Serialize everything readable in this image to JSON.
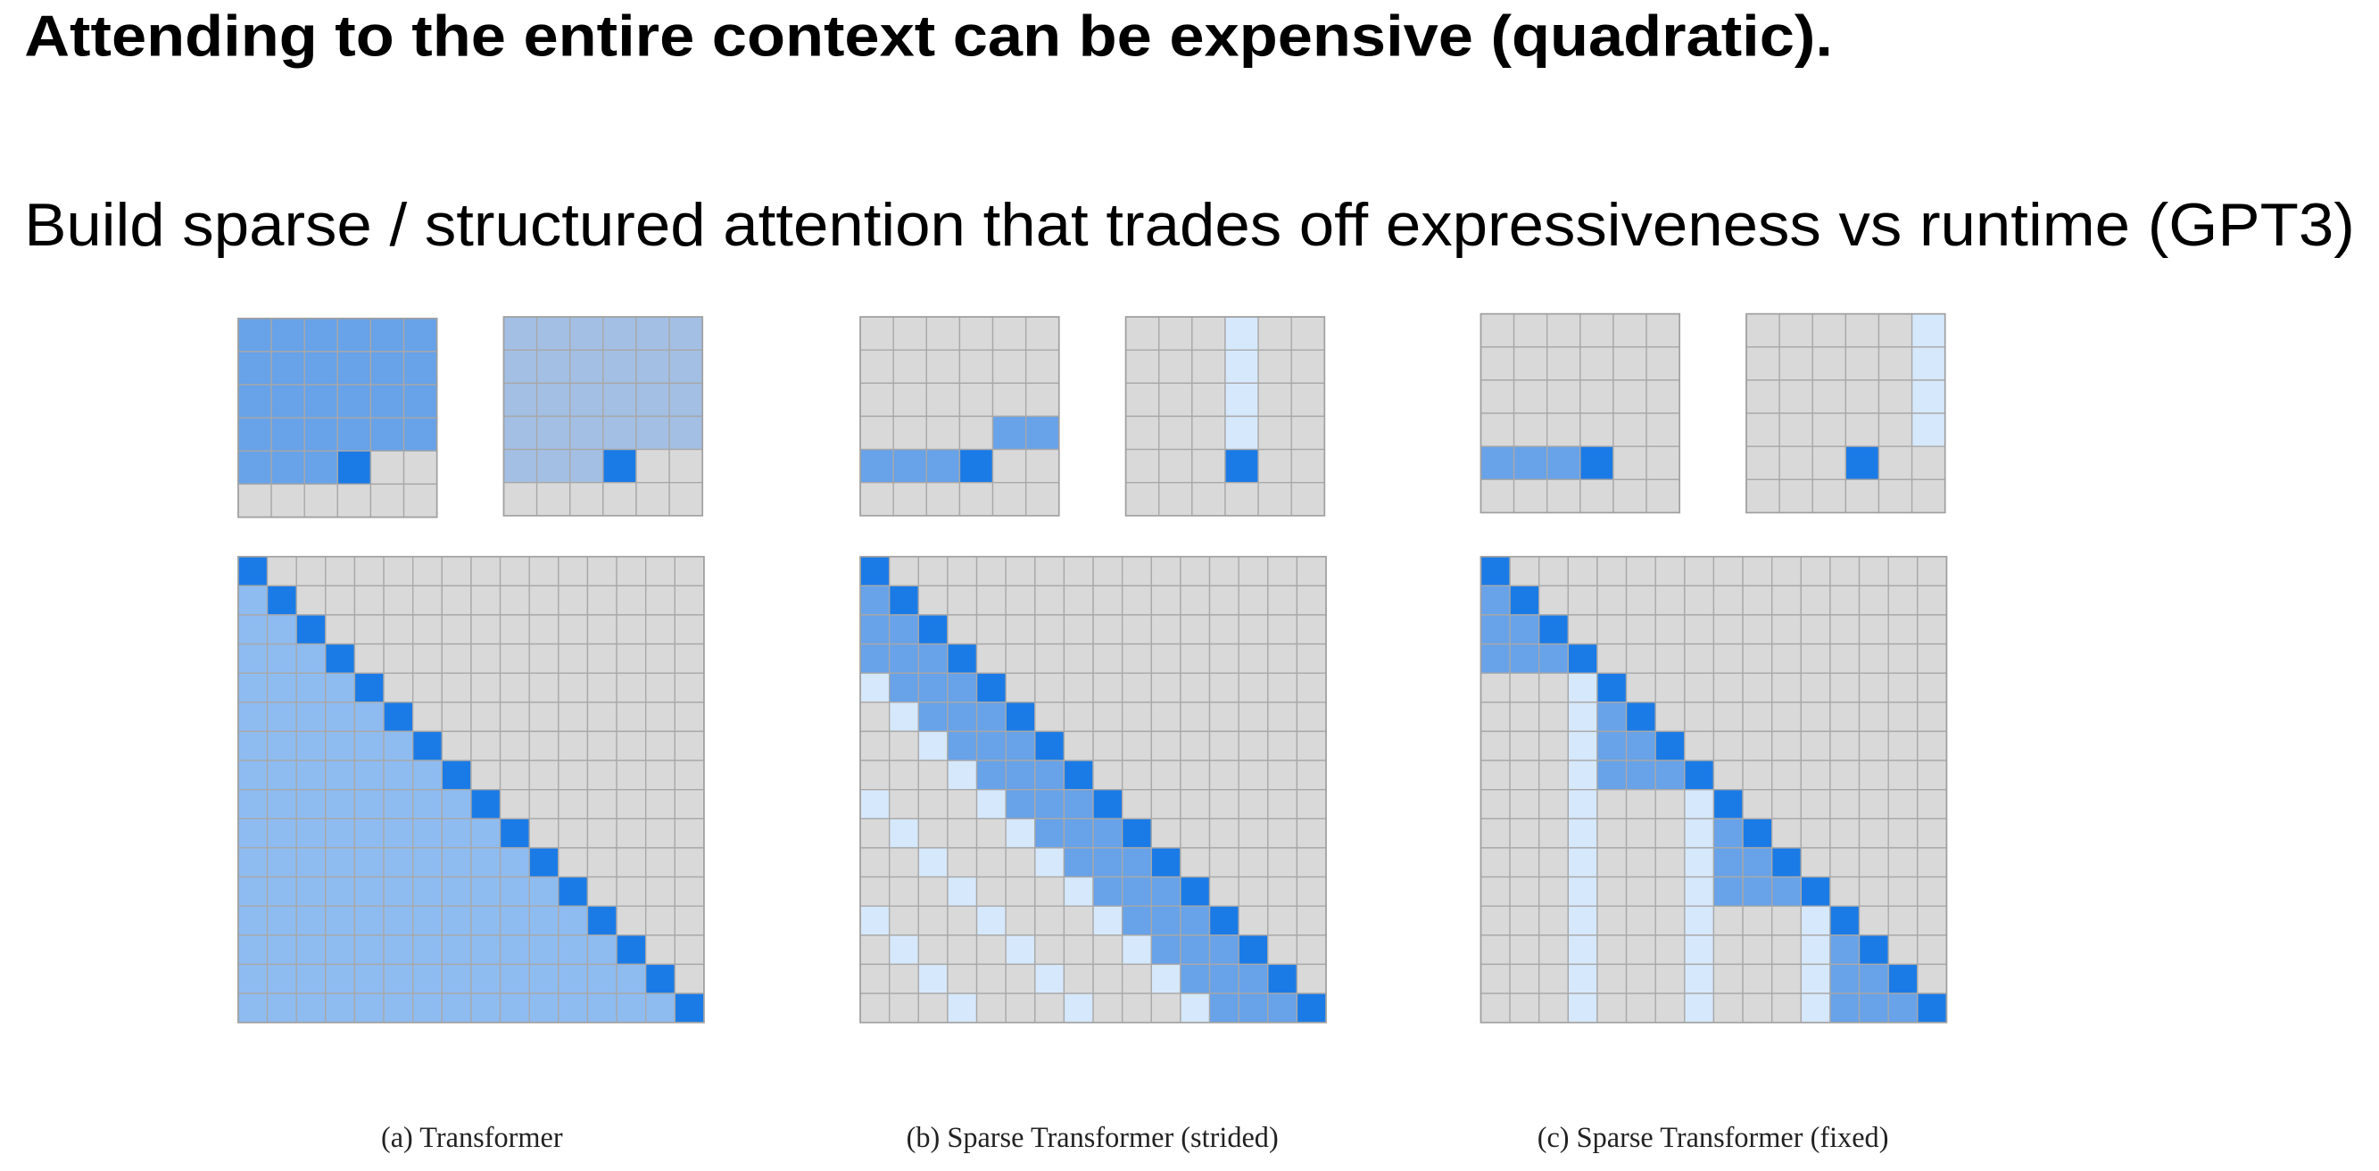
{
  "title": "Attending to the entire context can be expensive (quadratic).",
  "subtitle": "Build sparse / structured attention that trades off expressiveness vs runtime (GPT3)",
  "figure": {
    "captions": [
      "(a) Transformer",
      "(b) Sparse Transformer (strided)",
      "(c) Sparse Transformer (fixed)"
    ]
  }
}
